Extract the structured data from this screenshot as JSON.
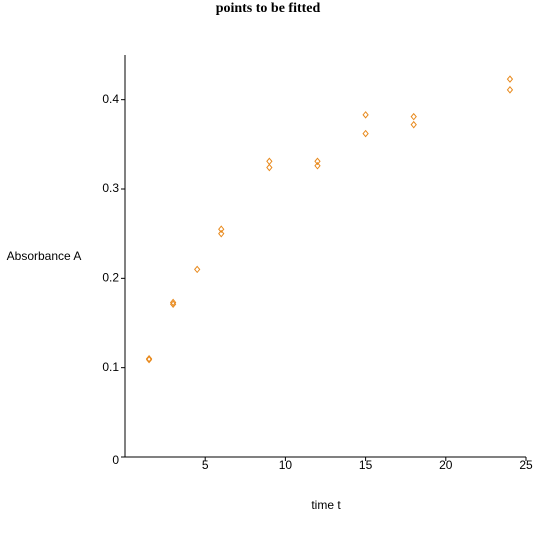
{
  "chart_data": {
    "type": "scatter",
    "title": "points to be fitted",
    "x_label": "time t",
    "y_label": "Absorbance A",
    "series": [
      {
        "color": "#e8891c",
        "x": [
          1.5,
          1.5,
          3,
          3,
          4.5,
          6,
          6,
          9,
          9,
          12,
          12,
          15,
          15,
          18,
          18,
          24,
          24
        ],
        "values": [
          0.109,
          0.11,
          0.173,
          0.171,
          0.21,
          0.255,
          0.25,
          0.331,
          0.324,
          0.331,
          0.326,
          0.383,
          0.362,
          0.381,
          0.372,
          0.423,
          0.411
        ]
      }
    ],
    "xlim": [
      0,
      25
    ],
    "ylim": [
      0,
      0.45
    ],
    "xticks": [
      5,
      10,
      15,
      20,
      25
    ],
    "yticks": [
      0,
      0.1,
      0.2,
      0.3,
      0.4
    ]
  }
}
